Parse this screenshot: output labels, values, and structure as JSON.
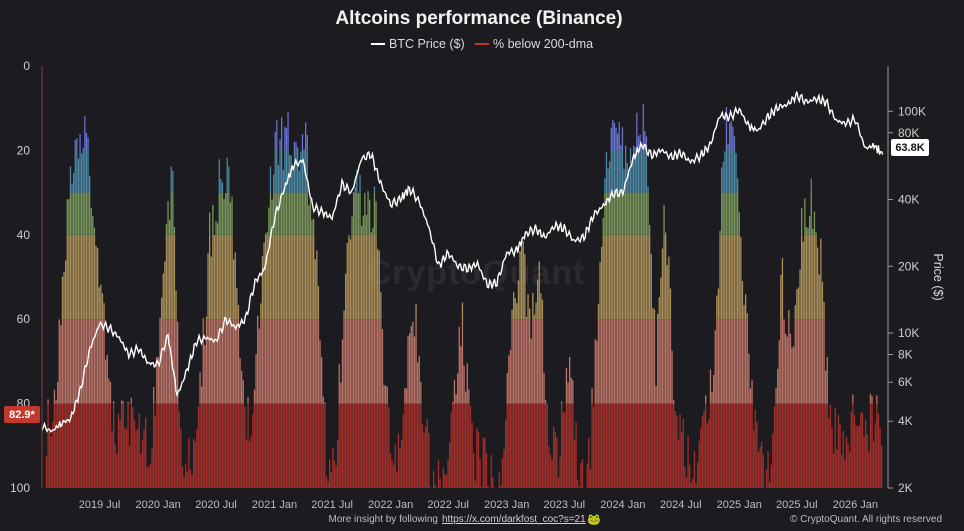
{
  "chart_data": {
    "type": "area",
    "title": "Altcoins performance (Binance)",
    "legend": [
      {
        "name": "BTC Price ($)",
        "color": "#ffffff"
      },
      {
        "name": "% below 200-dma",
        "color": "#c0392b"
      }
    ],
    "legend_position": "top-center",
    "left_axis": {
      "ticks": [
        0,
        20,
        40,
        60,
        80,
        100
      ],
      "reversed": true,
      "range": [
        0,
        100
      ]
    },
    "right_axis": {
      "label": "Price ($)",
      "scale": "log",
      "ticks": [
        "2K",
        "4K",
        "6K",
        "8K",
        "10K",
        "20K",
        "40K",
        "80K",
        "100K"
      ],
      "tick_values": [
        2000,
        4000,
        6000,
        8000,
        10000,
        20000,
        40000,
        80000,
        100000
      ],
      "range": [
        2000,
        160000
      ]
    },
    "x_ticks": [
      "2019 Jul",
      "2020 Jan",
      "2020 Jul",
      "2021 Jan",
      "2021 Jul",
      "2022 Jan",
      "2022 Jul",
      "2023 Jan",
      "2023 Jul",
      "2024 Jan",
      "2024 Jul",
      "2025 Jan",
      "2025 Jul",
      "2026 Jan"
    ],
    "x_range": [
      "2019-01-01",
      "2026-04-01"
    ],
    "current_values": {
      "pct_below_200dma": "82.9*",
      "btc_price": "63.8K"
    },
    "color_bands": [
      {
        "from": 80,
        "to": 100,
        "color": "#b0302a"
      },
      {
        "from": 60,
        "to": 80,
        "color": "#c97b6c"
      },
      {
        "from": 40,
        "to": 60,
        "color": "#b69a5c"
      },
      {
        "from": 30,
        "to": 40,
        "color": "#7fa061"
      },
      {
        "from": 20,
        "to": 30,
        "color": "#4f8fb0"
      },
      {
        "from": 0,
        "to": 20,
        "color": "#6f7ae0"
      }
    ],
    "pct_below_200dma": [
      [
        "2019-01-15",
        85
      ],
      [
        "2019-02-15",
        80
      ],
      [
        "2019-03-10",
        45
      ],
      [
        "2019-04-10",
        20
      ],
      [
        "2019-05-15",
        17
      ],
      [
        "2019-06-15",
        32
      ],
      [
        "2019-07-15",
        58
      ],
      [
        "2019-08-15",
        84
      ],
      [
        "2019-09-15",
        85
      ],
      [
        "2019-10-15",
        82
      ],
      [
        "2019-11-15",
        86
      ],
      [
        "2019-12-10",
        90
      ],
      [
        "2020-01-10",
        55
      ],
      [
        "2020-02-15",
        25
      ],
      [
        "2020-03-15",
        98
      ],
      [
        "2020-04-15",
        90
      ],
      [
        "2020-05-15",
        75
      ],
      [
        "2020-06-10",
        40
      ],
      [
        "2020-07-10",
        28
      ],
      [
        "2020-08-15",
        24
      ],
      [
        "2020-09-15",
        70
      ],
      [
        "2020-10-15",
        86
      ],
      [
        "2020-11-15",
        55
      ],
      [
        "2020-12-15",
        30
      ],
      [
        "2021-01-10",
        18
      ],
      [
        "2021-02-15",
        16
      ],
      [
        "2021-03-15",
        18
      ],
      [
        "2021-04-10",
        17
      ],
      [
        "2021-05-15",
        50
      ],
      [
        "2021-06-15",
        92
      ],
      [
        "2021-07-15",
        90
      ],
      [
        "2021-08-15",
        40
      ],
      [
        "2021-09-15",
        28
      ],
      [
        "2021-10-15",
        35
      ],
      [
        "2021-11-15",
        30
      ],
      [
        "2021-12-15",
        75
      ],
      [
        "2022-01-15",
        93
      ],
      [
        "2022-02-15",
        75
      ],
      [
        "2022-03-15",
        55
      ],
      [
        "2022-04-15",
        82
      ],
      [
        "2022-05-15",
        96
      ],
      [
        "2022-06-15",
        99
      ],
      [
        "2022-07-15",
        82
      ],
      [
        "2022-08-15",
        60
      ],
      [
        "2022-09-15",
        90
      ],
      [
        "2022-10-15",
        92
      ],
      [
        "2022-11-15",
        97
      ],
      [
        "2022-12-15",
        96
      ],
      [
        "2023-01-15",
        60
      ],
      [
        "2023-02-15",
        40
      ],
      [
        "2023-03-15",
        62
      ],
      [
        "2023-04-15",
        50
      ],
      [
        "2023-05-15",
        85
      ],
      [
        "2023-06-15",
        92
      ],
      [
        "2023-07-15",
        65
      ],
      [
        "2023-08-15",
        95
      ],
      [
        "2023-09-15",
        95
      ],
      [
        "2023-10-15",
        60
      ],
      [
        "2023-11-15",
        20
      ],
      [
        "2023-12-15",
        8
      ],
      [
        "2024-01-15",
        25
      ],
      [
        "2024-02-15",
        15
      ],
      [
        "2024-03-10",
        8
      ],
      [
        "2024-04-15",
        70
      ],
      [
        "2024-05-10",
        30
      ],
      [
        "2024-06-15",
        80
      ],
      [
        "2024-07-15",
        90
      ],
      [
        "2024-08-15",
        96
      ],
      [
        "2024-09-15",
        85
      ],
      [
        "2024-10-15",
        70
      ],
      [
        "2024-11-15",
        15
      ],
      [
        "2024-12-10",
        8
      ],
      [
        "2025-01-10",
        45
      ],
      [
        "2025-02-15",
        80
      ],
      [
        "2025-03-15",
        92
      ],
      [
        "2025-04-15",
        95
      ],
      [
        "2025-05-15",
        50
      ],
      [
        "2025-06-15",
        68
      ],
      [
        "2025-07-15",
        40
      ],
      [
        "2025-08-15",
        30
      ],
      [
        "2025-09-15",
        45
      ],
      [
        "2025-10-15",
        85
      ],
      [
        "2025-11-15",
        88
      ],
      [
        "2025-12-15",
        85
      ],
      [
        "2026-01-15",
        80
      ],
      [
        "2026-02-15",
        84
      ],
      [
        "2026-03-15",
        80
      ],
      [
        "2026-03-28",
        82.9
      ]
    ],
    "btc_price": [
      [
        "2019-01-01",
        3800
      ],
      [
        "2019-02-01",
        3600
      ],
      [
        "2019-03-01",
        3900
      ],
      [
        "2019-04-01",
        4100
      ],
      [
        "2019-05-01",
        5500
      ],
      [
        "2019-06-01",
        8500
      ],
      [
        "2019-07-01",
        11000
      ],
      [
        "2019-08-01",
        10500
      ],
      [
        "2019-09-01",
        9500
      ],
      [
        "2019-10-01",
        8000
      ],
      [
        "2019-11-01",
        8500
      ],
      [
        "2019-12-01",
        7300
      ],
      [
        "2020-01-01",
        7200
      ],
      [
        "2020-02-01",
        9800
      ],
      [
        "2020-03-01",
        5200
      ],
      [
        "2020-04-01",
        6800
      ],
      [
        "2020-05-01",
        9200
      ],
      [
        "2020-06-01",
        9500
      ],
      [
        "2020-07-01",
        9200
      ],
      [
        "2020-08-01",
        11500
      ],
      [
        "2020-09-01",
        10600
      ],
      [
        "2020-10-01",
        11500
      ],
      [
        "2020-11-01",
        17000
      ],
      [
        "2020-12-01",
        19500
      ],
      [
        "2021-01-01",
        33000
      ],
      [
        "2021-02-01",
        45000
      ],
      [
        "2021-03-01",
        57000
      ],
      [
        "2021-04-01",
        60000
      ],
      [
        "2021-05-01",
        37000
      ],
      [
        "2021-06-01",
        35000
      ],
      [
        "2021-07-01",
        33000
      ],
      [
        "2021-08-01",
        47000
      ],
      [
        "2021-09-01",
        43000
      ],
      [
        "2021-10-01",
        61000
      ],
      [
        "2021-11-01",
        64000
      ],
      [
        "2021-12-01",
        47000
      ],
      [
        "2022-01-01",
        38000
      ],
      [
        "2022-02-01",
        40000
      ],
      [
        "2022-03-01",
        45000
      ],
      [
        "2022-04-01",
        39000
      ],
      [
        "2022-05-01",
        30000
      ],
      [
        "2022-06-01",
        20000
      ],
      [
        "2022-07-01",
        23000
      ],
      [
        "2022-08-01",
        20000
      ],
      [
        "2022-09-01",
        19500
      ],
      [
        "2022-10-01",
        20500
      ],
      [
        "2022-11-01",
        16500
      ],
      [
        "2022-12-01",
        16800
      ],
      [
        "2023-01-01",
        23000
      ],
      [
        "2023-02-01",
        23500
      ],
      [
        "2023-03-01",
        28000
      ],
      [
        "2023-04-01",
        29500
      ],
      [
        "2023-05-01",
        27000
      ],
      [
        "2023-06-01",
        30500
      ],
      [
        "2023-07-01",
        29500
      ],
      [
        "2023-08-01",
        26000
      ],
      [
        "2023-09-01",
        27000
      ],
      [
        "2023-10-01",
        34000
      ],
      [
        "2023-11-01",
        37500
      ],
      [
        "2023-12-01",
        42500
      ],
      [
        "2024-01-01",
        43000
      ],
      [
        "2024-02-01",
        61000
      ],
      [
        "2024-03-01",
        71000
      ],
      [
        "2024-04-01",
        63000
      ],
      [
        "2024-05-01",
        67000
      ],
      [
        "2024-06-01",
        62000
      ],
      [
        "2024-07-01",
        65000
      ],
      [
        "2024-08-01",
        59000
      ],
      [
        "2024-09-01",
        63000
      ],
      [
        "2024-10-01",
        70000
      ],
      [
        "2024-11-01",
        96000
      ],
      [
        "2024-12-01",
        94000
      ],
      [
        "2025-01-01",
        102000
      ],
      [
        "2025-02-01",
        85000
      ],
      [
        "2025-03-01",
        82000
      ],
      [
        "2025-04-01",
        94000
      ],
      [
        "2025-05-01",
        104000
      ],
      [
        "2025-06-01",
        107000
      ],
      [
        "2025-07-01",
        118000
      ],
      [
        "2025-08-01",
        110000
      ],
      [
        "2025-09-01",
        114000
      ],
      [
        "2025-10-01",
        110000
      ],
      [
        "2025-11-01",
        91000
      ],
      [
        "2025-12-01",
        88000
      ],
      [
        "2026-01-01",
        92000
      ],
      [
        "2026-02-01",
        68000
      ],
      [
        "2026-03-01",
        70000
      ],
      [
        "2026-03-28",
        63800
      ]
    ],
    "watermark": "CryptoQuant"
  },
  "footer": {
    "insight_text": "More insight by following",
    "insight_link": "https://x.com/darkfost_coc?s=21",
    "credit": "© CryptoQuant. All rights reserved"
  }
}
